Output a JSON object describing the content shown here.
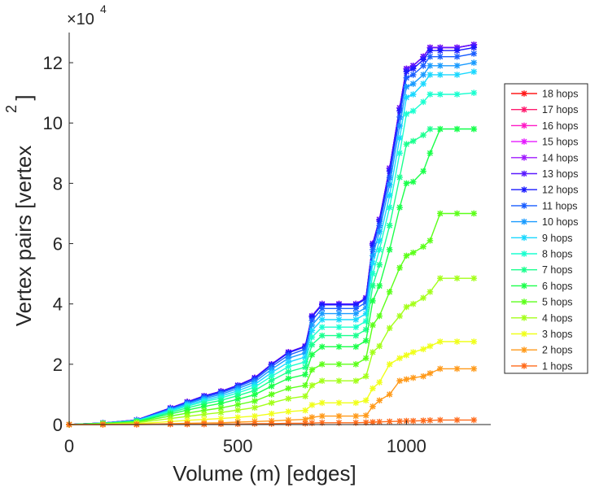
{
  "chart_data": {
    "type": "line",
    "title": "",
    "xlabel": "Volume (m) [edges]",
    "ylabel": "Vertex pairs [vertex",
    "ylabel_superscript": "2",
    "ylabel_close": "]",
    "y_multiplier_label": "×10",
    "y_multiplier_exponent": "4",
    "xlim": [
      0,
      1250
    ],
    "ylim": [
      0,
      13
    ],
    "x_ticks": [
      0,
      500,
      1000
    ],
    "x_tick_labels": [
      "0",
      "500",
      "1000"
    ],
    "y_ticks": [
      0,
      2,
      4,
      6,
      8,
      10,
      12
    ],
    "y_tick_labels": [
      "0",
      "2",
      "4",
      "6",
      "8",
      "10",
      "12"
    ],
    "grid": false,
    "legend_position": "right",
    "x": [
      0,
      100,
      200,
      300,
      350,
      400,
      450,
      500,
      550,
      600,
      650,
      700,
      720,
      750,
      800,
      850,
      880,
      900,
      920,
      950,
      980,
      1000,
      1020,
      1050,
      1070,
      1100,
      1150,
      1200
    ],
    "series": [
      {
        "name": "18 hops",
        "color": "#ff1a1a",
        "values": [
          0.0,
          0.05,
          0.15,
          0.55,
          0.75,
          0.95,
          1.1,
          1.3,
          1.55,
          2.0,
          2.4,
          2.6,
          3.6,
          4.0,
          4.0,
          4.0,
          4.2,
          6.0,
          6.8,
          8.5,
          10.5,
          11.8,
          11.9,
          12.2,
          12.5,
          12.5,
          12.5,
          12.6
        ]
      },
      {
        "name": "17 hops",
        "color": "#ff1a6e",
        "values": [
          0.0,
          0.05,
          0.15,
          0.55,
          0.75,
          0.95,
          1.1,
          1.3,
          1.55,
          2.0,
          2.4,
          2.6,
          3.6,
          4.0,
          4.0,
          4.0,
          4.2,
          6.0,
          6.8,
          8.5,
          10.5,
          11.8,
          11.9,
          12.2,
          12.5,
          12.5,
          12.5,
          12.6
        ]
      },
      {
        "name": "16 hops",
        "color": "#ff1ac6",
        "values": [
          0.0,
          0.05,
          0.15,
          0.55,
          0.75,
          0.95,
          1.1,
          1.3,
          1.55,
          2.0,
          2.4,
          2.6,
          3.6,
          4.0,
          4.0,
          4.0,
          4.2,
          6.0,
          6.8,
          8.5,
          10.5,
          11.8,
          11.9,
          12.2,
          12.5,
          12.5,
          12.5,
          12.6
        ]
      },
      {
        "name": "15 hops",
        "color": "#e51aff",
        "values": [
          0.0,
          0.05,
          0.15,
          0.55,
          0.75,
          0.95,
          1.1,
          1.3,
          1.55,
          2.0,
          2.4,
          2.6,
          3.6,
          4.0,
          4.0,
          4.0,
          4.2,
          6.0,
          6.8,
          8.5,
          10.5,
          11.8,
          11.9,
          12.2,
          12.5,
          12.5,
          12.5,
          12.6
        ]
      },
      {
        "name": "14 hops",
        "color": "#a01aff",
        "values": [
          0.0,
          0.05,
          0.15,
          0.55,
          0.75,
          0.95,
          1.1,
          1.3,
          1.55,
          2.0,
          2.4,
          2.6,
          3.6,
          4.0,
          4.0,
          4.0,
          4.2,
          6.0,
          6.8,
          8.5,
          10.5,
          11.8,
          11.9,
          12.2,
          12.5,
          12.5,
          12.5,
          12.6
        ]
      },
      {
        "name": "13 hops",
        "color": "#5a1aff",
        "values": [
          0.0,
          0.05,
          0.15,
          0.55,
          0.75,
          0.95,
          1.1,
          1.3,
          1.55,
          2.0,
          2.4,
          2.6,
          3.6,
          4.0,
          4.0,
          4.0,
          4.2,
          6.0,
          6.8,
          8.5,
          10.5,
          11.8,
          11.9,
          12.2,
          12.5,
          12.5,
          12.5,
          12.6
        ]
      },
      {
        "name": "12 hops",
        "color": "#1a1aff",
        "values": [
          0.0,
          0.05,
          0.15,
          0.54,
          0.74,
          0.94,
          1.09,
          1.29,
          1.53,
          1.98,
          2.38,
          2.58,
          3.57,
          3.97,
          3.97,
          3.97,
          4.17,
          5.95,
          6.74,
          8.4,
          10.4,
          11.7,
          11.8,
          12.1,
          12.4,
          12.4,
          12.4,
          12.5
        ]
      },
      {
        "name": "11 hops",
        "color": "#1a5eff",
        "values": [
          0.0,
          0.05,
          0.14,
          0.52,
          0.72,
          0.9,
          1.05,
          1.25,
          1.48,
          1.92,
          2.3,
          2.5,
          3.45,
          3.85,
          3.85,
          3.85,
          4.05,
          5.8,
          6.6,
          8.2,
          10.2,
          11.5,
          11.6,
          11.9,
          12.2,
          12.2,
          12.2,
          12.3
        ]
      },
      {
        "name": "10 hops",
        "color": "#1a9bff",
        "values": [
          0.0,
          0.05,
          0.14,
          0.5,
          0.69,
          0.86,
          1.0,
          1.19,
          1.41,
          1.83,
          2.2,
          2.38,
          3.3,
          3.68,
          3.68,
          3.68,
          3.88,
          5.6,
          6.4,
          7.95,
          9.9,
          11.2,
          11.3,
          11.6,
          11.9,
          11.9,
          11.9,
          12.0
        ]
      },
      {
        "name": "9 hops",
        "color": "#1ad8ff",
        "values": [
          0.0,
          0.04,
          0.13,
          0.47,
          0.65,
          0.81,
          0.94,
          1.12,
          1.33,
          1.72,
          2.07,
          2.24,
          3.12,
          3.48,
          3.48,
          3.48,
          3.68,
          5.35,
          6.1,
          7.6,
          9.5,
          10.85,
          10.95,
          11.3,
          11.6,
          11.6,
          11.6,
          11.7
        ]
      },
      {
        "name": "8 hops",
        "color": "#1affd0",
        "values": [
          0.0,
          0.04,
          0.12,
          0.44,
          0.61,
          0.76,
          0.88,
          1.05,
          1.24,
          1.6,
          1.92,
          2.08,
          2.9,
          3.23,
          3.23,
          3.23,
          3.43,
          5.0,
          5.8,
          7.2,
          9.0,
          10.3,
          10.4,
          10.7,
          10.95,
          10.95,
          10.95,
          11.0
        ]
      },
      {
        "name": "7 hops",
        "color": "#1aff8e",
        "values": [
          0.0,
          0.04,
          0.11,
          0.4,
          0.55,
          0.69,
          0.8,
          0.96,
          1.13,
          1.46,
          1.75,
          1.9,
          2.65,
          2.95,
          2.95,
          2.95,
          3.15,
          4.6,
          5.3,
          6.6,
          8.2,
          9.3,
          9.4,
          9.6,
          9.8,
          9.8,
          9.8,
          9.8
        ]
      },
      {
        "name": "6 hops",
        "color": "#1aff4a",
        "values": [
          0.0,
          0.04,
          0.1,
          0.35,
          0.48,
          0.6,
          0.7,
          0.84,
          0.99,
          1.27,
          1.53,
          1.66,
          2.32,
          2.58,
          2.58,
          2.58,
          2.78,
          4.1,
          4.6,
          5.8,
          7.2,
          8.0,
          8.05,
          8.4,
          9.0,
          9.8,
          9.8,
          9.8
        ]
      },
      {
        "name": "5 hops",
        "color": "#5cff1a",
        "values": [
          0.0,
          0.03,
          0.08,
          0.28,
          0.38,
          0.47,
          0.55,
          0.66,
          0.78,
          1.0,
          1.2,
          1.3,
          1.82,
          2.0,
          2.0,
          2.0,
          2.2,
          3.3,
          3.6,
          4.4,
          5.2,
          5.6,
          5.7,
          5.9,
          6.1,
          7.0,
          7.0,
          7.0
        ]
      },
      {
        "name": "4 hops",
        "color": "#a4ff1a",
        "values": [
          0.0,
          0.02,
          0.06,
          0.2,
          0.27,
          0.34,
          0.4,
          0.48,
          0.56,
          0.72,
          0.86,
          0.94,
          1.3,
          1.45,
          1.45,
          1.45,
          1.6,
          2.4,
          2.6,
          3.2,
          3.6,
          3.9,
          4.0,
          4.2,
          4.4,
          4.85,
          4.85,
          4.85
        ]
      },
      {
        "name": "3 hops",
        "color": "#f0ff1a",
        "values": [
          0.0,
          0.01,
          0.03,
          0.1,
          0.14,
          0.17,
          0.2,
          0.24,
          0.28,
          0.36,
          0.43,
          0.47,
          0.65,
          0.72,
          0.72,
          0.72,
          0.8,
          1.2,
          1.4,
          2.0,
          2.2,
          2.3,
          2.4,
          2.5,
          2.6,
          2.75,
          2.75,
          2.75
        ]
      },
      {
        "name": "2 hops",
        "color": "#ff9a1a",
        "values": [
          0.0,
          0.0,
          0.01,
          0.03,
          0.04,
          0.05,
          0.06,
          0.08,
          0.1,
          0.12,
          0.15,
          0.17,
          0.24,
          0.28,
          0.28,
          0.28,
          0.3,
          0.6,
          0.8,
          1.0,
          1.45,
          1.5,
          1.55,
          1.6,
          1.7,
          1.85,
          1.85,
          1.85
        ]
      },
      {
        "name": "1 hops",
        "color": "#ff6a1a",
        "values": [
          0.0,
          0.0,
          0.0,
          0.01,
          0.01,
          0.01,
          0.02,
          0.02,
          0.03,
          0.03,
          0.04,
          0.04,
          0.05,
          0.06,
          0.06,
          0.06,
          0.07,
          0.08,
          0.09,
          0.1,
          0.11,
          0.12,
          0.12,
          0.13,
          0.14,
          0.15,
          0.15,
          0.15
        ]
      }
    ]
  }
}
